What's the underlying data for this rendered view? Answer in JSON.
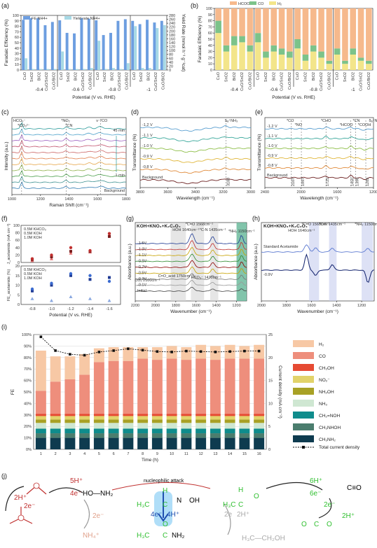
{
  "colors": {
    "fe_nh4": "#6d9ee0",
    "yield_nh4": "#a7d9e5",
    "hcoo": "#f6b98c",
    "co": "#7cc38a",
    "h2": "#f3e58a",
    "h2_i": "#f7c8a5",
    "co_i": "#ee8e7c",
    "ch3oh_i": "#e64a33",
    "no2_i": "#e2d36a",
    "nh2oh_i": "#a8a125",
    "nh3_i": "#cfe7d2",
    "ch2noh_i": "#0f8c8c",
    "ch3nhoh_i": "#4b7d6e",
    "ch3nh2_i": "#0e3b4f"
  },
  "panel_labels": {
    "a": "(a)",
    "b": "(b)",
    "c": "(c)",
    "d": "(d)",
    "e": "(e)",
    "f": "(f)",
    "g": "(g)",
    "h": "(h)",
    "i": "(i)",
    "j": "(j)"
  },
  "chart_data": [
    {
      "id": "a",
      "type": "bar",
      "ylabel": "Faradaic Efficiency (%)",
      "y2label": "Yield Rate (mmol h⁻¹ g⁻¹cat)",
      "xlabel": "Potential (V vs. RHE)",
      "legend": [
        "FE NH4+",
        "Yield rate NH4+"
      ],
      "ylim": [
        0,
        100
      ],
      "y2lim": [
        0,
        280
      ],
      "yticks": [
        0,
        10,
        20,
        30,
        40,
        50,
        60,
        70,
        80,
        90,
        100
      ],
      "y2ticks": [
        0,
        20,
        40,
        60,
        80,
        100,
        120,
        140,
        160,
        180,
        200,
        220,
        240,
        260,
        280
      ],
      "categories": [
        "CuO",
        "SnO2",
        "BiO2",
        "CuO/SnO2",
        "CuO/BiO2"
      ],
      "groups": [
        "-0.4",
        "-0.6",
        "-0.8",
        "-1"
      ],
      "fe": [
        [
          92,
          95,
          95,
          82,
          88
        ],
        [
          91,
          68,
          67,
          95,
          94
        ],
        [
          91,
          64,
          68,
          90,
          93
        ],
        [
          90,
          84,
          92,
          87,
          90
        ]
      ],
      "yield": [
        [
          60,
          5,
          5,
          5,
          5
        ],
        [
          95,
          5,
          5,
          5,
          10
        ],
        [
          150,
          5,
          10,
          5,
          35
        ],
        [
          225,
          10,
          10,
          215,
          230
        ]
      ]
    },
    {
      "id": "b",
      "type": "bar",
      "ylabel": "Faradaic Efficiency (%)",
      "xlabel": "Potential (V vs. RHE)",
      "legend": [
        "HCOO⁻",
        "CO",
        "H₂"
      ],
      "ylim": [
        0,
        100
      ],
      "yticks": [
        0,
        10,
        20,
        30,
        40,
        50,
        60,
        70,
        80,
        90,
        100
      ],
      "categories": [
        "CuO",
        "SnO2",
        "BiO2",
        "CuO/SnO2",
        "CuO/BiO2"
      ],
      "groups": [
        "-0.4",
        "-0.6",
        "-0.8",
        "-1"
      ],
      "h2": [
        [
          60,
          30,
          40,
          45,
          30
        ],
        [
          45,
          20,
          30,
          25,
          20
        ],
        [
          35,
          15,
          30,
          20,
          10
        ],
        [
          25,
          10,
          25,
          15,
          10
        ]
      ],
      "co": [
        [
          20,
          10,
          15,
          10,
          10
        ],
        [
          15,
          10,
          10,
          10,
          10
        ],
        [
          15,
          10,
          10,
          10,
          5
        ],
        [
          10,
          5,
          10,
          5,
          5
        ]
      ],
      "hcoo": [
        [
          20,
          60,
          45,
          45,
          60
        ],
        [
          40,
          70,
          60,
          65,
          70
        ],
        [
          50,
          75,
          60,
          70,
          85
        ],
        [
          65,
          85,
          65,
          80,
          85
        ]
      ]
    },
    {
      "id": "c",
      "type": "line",
      "ylabel": "Intensity (a.u.)",
      "xlabel": "Raman Shift (cm⁻¹)",
      "xlim": [
        1000,
        1800
      ],
      "xticks": [
        1000,
        1200,
        1400,
        1600,
        1800
      ],
      "annotations": [
        "HCO₃⁻",
        "*CO₃²⁻",
        "*NO₂",
        "*CN",
        "v⁻*CO"
      ],
      "time_top": "45 min",
      "time_bottom": "1 min",
      "background": "Background",
      "curve_colors": [
        "#2b9b9b",
        "#4aa0c9",
        "#9b5fbf",
        "#c04f6a",
        "#cc6666",
        "#e07c4a",
        "#e6a64a",
        "#8fb04a",
        "#4a9f4a",
        "#3a8f8f",
        "#2f7ab0"
      ]
    },
    {
      "id": "d",
      "type": "line",
      "ylabel": "Transmittance (%)",
      "xlabel": "Wavelength (cm⁻¹)",
      "xlim": [
        3800,
        3000
      ],
      "xticks": [
        3800,
        3600,
        3400,
        3200,
        3000
      ],
      "series_names": [
        "-1.2 V",
        "-1.1 V",
        "-1.0 V",
        "-0.9 V",
        "-0.8 V",
        "Background"
      ],
      "annotation": "Sₐ⁺NH₃",
      "marker": "3180"
    },
    {
      "id": "e",
      "type": "line",
      "ylabel": "Transmittance (%)",
      "xlabel": "Wavelength (cm⁻¹)",
      "xlim": [
        2400,
        1200
      ],
      "xticks": [
        2400,
        2000,
        1600,
        1200
      ],
      "series_names": [
        "-1.2 V",
        "-1.1 V",
        "-1.0 V",
        "-0.9 V",
        "-0.8 V",
        "Background"
      ],
      "annotations": [
        "*CO",
        "*NO",
        "*CHO",
        "*HCOO",
        "*CN",
        "*COOH",
        "δₐ⁺NH₃"
      ],
      "markers": [
        "2107",
        "1997",
        "1725",
        "1450",
        "1396",
        "1285",
        "1153"
      ]
    },
    {
      "id": "f",
      "type": "scatter",
      "ylabel_top": "J_acetamide (mA cm⁻²)",
      "ylabel_bottom": "FE_acetamide (%)",
      "xlabel": "Potential (V vs. RHE)",
      "x": [
        -0.8,
        -1.0,
        -1.2,
        -1.4,
        -1.6
      ],
      "xticks": [
        "-0.8",
        "-1.0",
        "-1.2",
        "-1.4",
        "-1.6"
      ],
      "top_ylim": [
        0,
        100
      ],
      "top_yticks": [
        0,
        20,
        40,
        60,
        80,
        100
      ],
      "bottom_ylim": [
        0,
        20
      ],
      "bottom_yticks": [
        0,
        5,
        10,
        15,
        20
      ],
      "legend_top": [
        "0.5M KHCO₃",
        "0.5M KOH",
        "1.0M KOH"
      ],
      "legend_bottom": [
        "0.5M KHCO₃",
        "0.5M KOH",
        "1.0M KOH"
      ],
      "top_series": [
        {
          "name": "0.5M KHCO₃",
          "values": [
            5,
            10,
            25,
            28,
            75
          ]
        },
        {
          "name": "0.5M KOH",
          "values": [
            8,
            15,
            30,
            30,
            70
          ]
        },
        {
          "name": "1.0M KOH",
          "values": [
            10,
            20,
            40,
            32,
            78
          ]
        }
      ],
      "bottom_series": [
        {
          "name": "0.5M KHCO₃",
          "values": [
            3,
            2,
            4,
            3,
            2
          ]
        },
        {
          "name": "0.5M KOH",
          "values": [
            7,
            10,
            15,
            13,
            14
          ]
        },
        {
          "name": "1.0M KOH",
          "values": [
            8,
            11,
            16,
            15,
            12
          ]
        }
      ]
    },
    {
      "id": "g",
      "type": "line",
      "title": "KOH+KNO₃+K₂C₂O₄",
      "ylabel": "Absorbance (a.u.)",
      "xlabel": "Wavenumber (cm⁻¹)",
      "xlim": [
        2200,
        1100
      ],
      "xticks": [
        2200,
        2000,
        1800,
        1600,
        1400,
        1200
      ],
      "series_names": [
        "-1.5V",
        "-1.3V",
        "-1.1V",
        "-0.9V",
        "-0.7V",
        "-0.5V",
        "-0.3V",
        "-0.1V",
        "Initial"
      ],
      "annotations": [
        "HOH 1640cm⁻¹",
        "*C=O 1568cm⁻¹",
        "*C-N 1435cm⁻¹",
        "*NH₂ 1150cm⁻¹",
        "CO₂ 2100cm⁻¹",
        "C=O_acid 1750cm⁻¹",
        "HCO₃⁻ 1470cm⁻¹"
      ]
    },
    {
      "id": "h",
      "type": "line",
      "title": "KOH+KNO₃+K₂C₂O₄",
      "ylabel": "Absorbance (a.u.)",
      "xlabel": "Wavenumber (cm⁻¹)",
      "xlim": [
        2000,
        1100
      ],
      "xticks": [
        2000,
        1800,
        1600,
        1400,
        1200
      ],
      "series_names": [
        "Standard Acetamide",
        "-0.9V"
      ],
      "annotations": [
        "HOH 1640cm⁻¹",
        "*C=O 1568cm⁻¹",
        "*C-N 1435cm⁻¹",
        "*NH₂ 1150cm⁻¹"
      ]
    },
    {
      "id": "i",
      "type": "bar",
      "ylabel": "FE",
      "y2label": "Current density (mA cm⁻²)",
      "xlabel": "Time (h)",
      "ylim": [
        0,
        100
      ],
      "yticks": [
        "0%",
        "10%",
        "20%",
        "30%",
        "40%",
        "50%",
        "60%",
        "70%",
        "80%",
        "90%",
        "100%"
      ],
      "y2lim": [
        0,
        25
      ],
      "y2ticks": [
        0,
        5,
        10,
        15,
        20,
        25
      ],
      "categories": [
        "1",
        "2",
        "3",
        "4",
        "5",
        "6",
        "7",
        "8",
        "9",
        "10",
        "11",
        "12",
        "13",
        "14",
        "15",
        "16"
      ],
      "legend": [
        "H₂",
        "CO",
        "CH₃OH",
        "NO₂⁻",
        "NH₂OH",
        "NH₃",
        "CH₂=NOH",
        "CH₃NHOH",
        "CH₃NH₂",
        "Total current density"
      ],
      "stack_order": [
        "CH₃NH₂",
        "CH₃NHOH",
        "CH₂=NOH",
        "NH₃",
        "NH₂OH",
        "NO₂⁻",
        "CH₃OH",
        "CO",
        "H₂"
      ],
      "stacks": [
        [
          10,
          4,
          4,
          5,
          3,
          3,
          2,
          20,
          35
        ],
        [
          10,
          4,
          4,
          5,
          3,
          3,
          2,
          28,
          22
        ],
        [
          10,
          4,
          4,
          5,
          3,
          3,
          2,
          30,
          20
        ],
        [
          10,
          4,
          4,
          5,
          3,
          3,
          2,
          34,
          18
        ],
        [
          10,
          4,
          4,
          5,
          3,
          3,
          2,
          45,
          12
        ],
        [
          10,
          4,
          4,
          5,
          3,
          3,
          2,
          46,
          12
        ],
        [
          10,
          4,
          4,
          5,
          3,
          3,
          2,
          46,
          12
        ],
        [
          10,
          4,
          4,
          5,
          3,
          3,
          2,
          48,
          10
        ],
        [
          10,
          4,
          4,
          5,
          3,
          3,
          2,
          47,
          11
        ],
        [
          10,
          4,
          4,
          5,
          3,
          3,
          2,
          48,
          11
        ],
        [
          10,
          4,
          4,
          5,
          3,
          3,
          2,
          47,
          11
        ],
        [
          10,
          4,
          4,
          5,
          3,
          3,
          2,
          48,
          12
        ],
        [
          10,
          4,
          4,
          5,
          3,
          3,
          2,
          47,
          12
        ],
        [
          10,
          4,
          4,
          5,
          3,
          3,
          2,
          48,
          12
        ],
        [
          10,
          4,
          4,
          5,
          3,
          3,
          2,
          48,
          11
        ],
        [
          10,
          4,
          4,
          5,
          3,
          3,
          2,
          48,
          12
        ]
      ],
      "current_density": [
        24.5,
        21.5,
        20.7,
        20.5,
        21.2,
        21.5,
        21.9,
        21.6,
        21.3,
        21.2,
        21.4,
        21.3,
        21.2,
        21.3,
        21.4,
        21.4
      ]
    }
  ],
  "scheme": {
    "steps": [
      "5H⁺",
      "4e⁻",
      "nucleophilic attack",
      "6H⁺",
      "6e⁻",
      "2H⁺",
      "2e⁻",
      "4e⁻",
      "4H⁺",
      "2e",
      "2H⁺",
      "2H⁺",
      "2e⁻",
      "NH₄⁺",
      "2e⁻"
    ],
    "species": [
      "HO—NH₂",
      "H₃C—CH₂OH",
      "H₃C",
      "C",
      "N",
      "OH",
      "H",
      "NH₂",
      "O",
      "C≡O"
    ]
  }
}
